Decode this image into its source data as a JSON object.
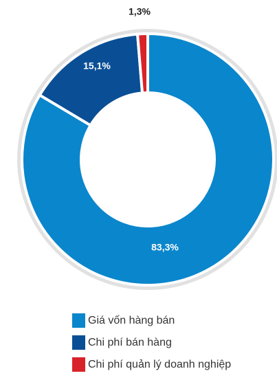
{
  "chart_data": {
    "type": "donut",
    "categories": [
      "Giá vốn hàng bán",
      "Chi phí bán hàng",
      "Chi phí quản lý doanh nghiệp"
    ],
    "values": [
      83.3,
      15.1,
      1.3
    ],
    "value_labels": [
      "83,3%",
      "15,1%",
      "1,3%"
    ],
    "colors": [
      "#0a86cc",
      "#0a4f96",
      "#d8232a"
    ],
    "legend": "bottom"
  }
}
